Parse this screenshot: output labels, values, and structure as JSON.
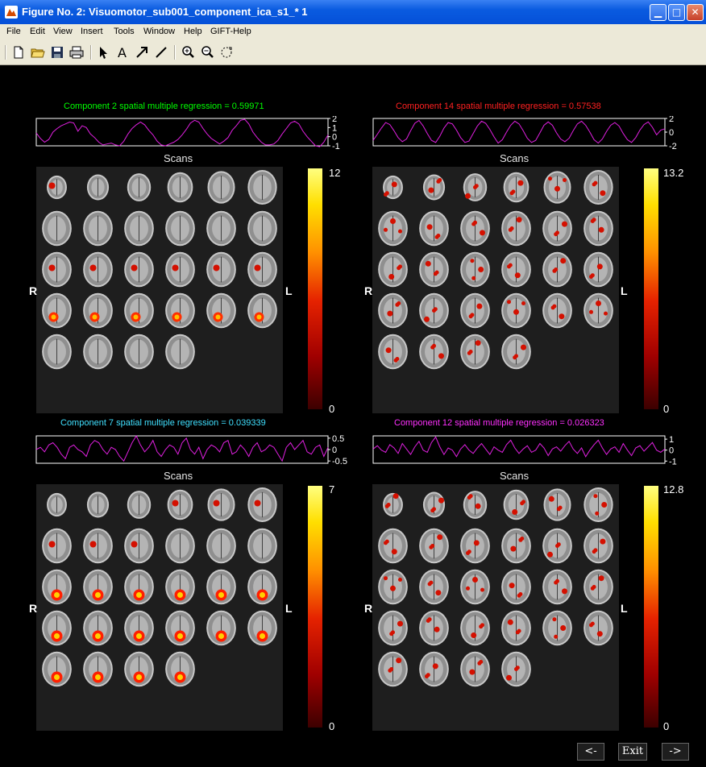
{
  "window": {
    "title": "Figure No. 2: Visuomotor_sub001_component_ica_s1_* 1",
    "controls": {
      "minimize": "▁",
      "maximize": "□",
      "close": "✕"
    }
  },
  "menu": [
    "File",
    "Edit",
    "View",
    "Insert",
    "Tools",
    "Window",
    "Help",
    "GIFT-Help"
  ],
  "toolbar": [
    "new-figure-icon",
    "open-icon",
    "save-icon",
    "print-icon",
    "select-arrow-icon",
    "insert-text-icon",
    "insert-arrow-icon",
    "insert-line-icon",
    "zoom-in-icon",
    "zoom-out-icon",
    "rotate-icon"
  ],
  "panels": [
    {
      "title": "Component 2 spatial multiple regression = 0.59971",
      "title_color": "#00ff00",
      "ticks": [
        "2",
        "1",
        "0",
        "-1"
      ],
      "timecourse": [
        0.4,
        -0.2,
        -0.6,
        -0.3,
        0.5,
        0.9,
        1.2,
        1.4,
        1.6,
        1.5,
        0.6,
        1.2,
        1.0,
        0.3,
        -0.1,
        -0.6,
        -0.9,
        -0.8,
        -0.7,
        -0.9,
        -1.0,
        -0.5,
        0.3,
        0.9,
        1.3,
        1.6,
        1.3,
        0.7,
        0.2,
        -0.5,
        -0.9,
        -1.0,
        -0.8,
        -0.6,
        -0.3,
        0.2,
        0.8,
        1.5,
        1.8,
        1.6,
        0.9,
        0.3,
        -0.2,
        -0.5,
        -0.8,
        -0.5,
        -0.1,
        0.7,
        1.2,
        1.8,
        1.9,
        1.4,
        0.5,
        -0.1,
        -0.6,
        -0.9,
        -0.9,
        -0.8,
        -0.4,
        0.3,
        0.9,
        1.5,
        1.7,
        1.4,
        0.6,
        0.0,
        -0.5,
        -1.0,
        -1.1,
        -0.6,
        0.2
      ],
      "ylim": [
        -1,
        2
      ],
      "colorbar": {
        "max": "12",
        "min": "0"
      },
      "slices": "30 axial slices"
    },
    {
      "title": "Component 14 spatial multiple regression = 0.57538",
      "title_color": "#ff2020",
      "ticks": [
        "2",
        "0",
        "-2"
      ],
      "timecourse": [
        -1.2,
        -0.3,
        0.6,
        1.4,
        1.1,
        0.2,
        -0.8,
        -1.4,
        -1.0,
        0.2,
        1.3,
        1.7,
        0.9,
        -0.2,
        -1.2,
        -1.5,
        -0.6,
        0.6,
        1.4,
        1.2,
        0.3,
        -0.8,
        -1.5,
        -1.3,
        -0.2,
        0.9,
        1.6,
        1.3,
        0.4,
        -0.7,
        -1.6,
        -1.1,
        0.0,
        1.0,
        1.6,
        1.2,
        0.2,
        -0.9,
        -1.5,
        -1.2,
        -0.1,
        1.0,
        1.5,
        1.0,
        -0.1,
        -1.0,
        -1.4,
        -0.9,
        0.2,
        1.2,
        1.6,
        1.0,
        0.0,
        -1.1,
        -1.6,
        -1.0,
        0.1,
        1.0,
        1.4,
        0.9,
        -0.2,
        -1.1,
        -1.5,
        -0.8,
        0.3,
        1.1,
        1.5,
        0.7,
        -0.4,
        0.3,
        0.5
      ],
      "ylim": [
        -2,
        2
      ],
      "colorbar": {
        "max": "13.2",
        "min": "0"
      },
      "slices": "30 axial slices"
    },
    {
      "title": "Component 7 spatial multiple regression = 0.039339",
      "title_color": "#40e0ff",
      "ticks": [
        "0.5",
        "0",
        "-0.5"
      ],
      "timecourse": [
        0.0,
        0.1,
        -0.1,
        0.2,
        0.3,
        0.1,
        -0.2,
        -0.4,
        0.1,
        0.2,
        0.0,
        -0.1,
        -0.3,
        0.2,
        0.4,
        0.3,
        0.0,
        -0.2,
        0.1,
        0.0,
        -0.3,
        -0.5,
        -0.1,
        0.3,
        0.6,
        0.2,
        -0.1,
        0.1,
        0.4,
        -0.1,
        -0.3,
        0.0,
        0.2,
        0.1,
        -0.2,
        0.3,
        0.5,
        0.0,
        -0.2,
        0.1,
        -0.4,
        0.0,
        0.2,
        0.1,
        -0.1,
        0.3,
        0.4,
        -0.2,
        -0.1,
        0.2,
        0.0,
        -0.3,
        0.1,
        0.3,
        -0.1,
        0.0,
        0.2,
        0.1,
        -0.2,
        -0.5,
        0.1,
        0.3,
        0.0,
        0.2,
        0.4,
        -0.1,
        -0.2,
        0.1,
        0.2,
        -0.3,
        0.1
      ],
      "ylim": [
        -0.6,
        0.6
      ],
      "colorbar": {
        "max": "7",
        "min": "0"
      },
      "slices": "30 axial slices"
    },
    {
      "title": "Component 12 spatial multiple regression = 0.026323",
      "title_color": "#ff30ff",
      "ticks": [
        "1",
        "0",
        "-1"
      ],
      "timecourse": [
        0.1,
        0.4,
        0.0,
        -0.2,
        0.5,
        0.2,
        -0.3,
        0.6,
        0.1,
        -0.4,
        0.3,
        0.8,
        0.0,
        -0.2,
        0.7,
        1.2,
        0.3,
        -0.4,
        0.2,
        0.0,
        -0.6,
        0.1,
        0.5,
        0.0,
        -0.3,
        0.2,
        0.6,
        0.1,
        -0.4,
        0.3,
        0.0,
        -0.2,
        0.5,
        0.9,
        0.2,
        -0.3,
        0.1,
        0.4,
        -0.2,
        0.0,
        0.6,
        0.2,
        -0.5,
        0.1,
        0.3,
        -0.1,
        0.4,
        0.8,
        0.1,
        -0.3,
        0.2,
        -0.6,
        0.0,
        0.5,
        0.9,
        0.2,
        -0.4,
        0.1,
        0.3,
        -0.2,
        0.6,
        0.0,
        -0.5,
        0.2,
        0.4,
        -0.1,
        0.3,
        0.7,
        0.0,
        -0.2,
        0.1
      ],
      "ylim": [
        -1.2,
        1.3
      ],
      "colorbar": {
        "max": "12.8",
        "min": "0"
      },
      "slices": "30 axial slices"
    }
  ],
  "labels": {
    "scans": "Scans",
    "right": "R",
    "left": "L"
  },
  "nav": {
    "prev": "<-",
    "exit": "Exit",
    "next": "->"
  }
}
